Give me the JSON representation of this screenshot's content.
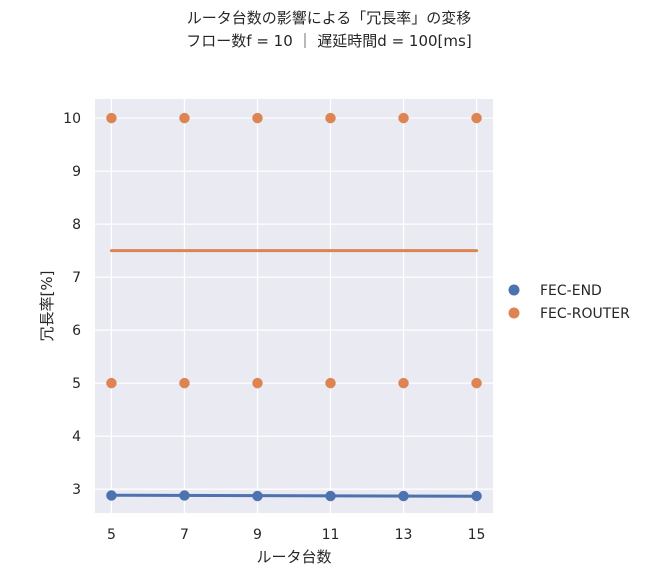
{
  "chart_data": {
    "type": "scatter",
    "title": "ルータ台数の影響による「冗長率」の変移",
    "subtitle": "フロー数f = 10 ｜ 遅延時間d = 100[ms]",
    "xlabel": "ルータ台数",
    "ylabel": "冗長率[%]",
    "x_ticks": [
      "5",
      "7",
      "9",
      "11",
      "13",
      "15"
    ],
    "y_ticks": [
      "3",
      "4",
      "5",
      "6",
      "7",
      "8",
      "9",
      "10"
    ],
    "xlim": [
      4.55,
      15.45
    ],
    "ylim": [
      2.55,
      10.36
    ],
    "grid": true,
    "legend_position": "right",
    "series": [
      {
        "name": "FEC-END",
        "color": "#4c72b0",
        "points": [
          {
            "x": 5,
            "y": 2.88
          },
          {
            "x": 7,
            "y": 2.88
          },
          {
            "x": 9,
            "y": 2.87
          },
          {
            "x": 11,
            "y": 2.87
          },
          {
            "x": 13,
            "y": 2.87
          },
          {
            "x": 15,
            "y": 2.87
          }
        ],
        "fit_line": [
          [
            5,
            2.885
          ],
          [
            15,
            2.865
          ]
        ]
      },
      {
        "name": "FEC-ROUTER",
        "color": "#dd8452",
        "points": [
          {
            "x": 5,
            "y": 10
          },
          {
            "x": 7,
            "y": 10
          },
          {
            "x": 9,
            "y": 10
          },
          {
            "x": 11,
            "y": 10
          },
          {
            "x": 13,
            "y": 10
          },
          {
            "x": 15,
            "y": 10
          },
          {
            "x": 5,
            "y": 5
          },
          {
            "x": 7,
            "y": 5
          },
          {
            "x": 9,
            "y": 5
          },
          {
            "x": 11,
            "y": 5
          },
          {
            "x": 13,
            "y": 5
          },
          {
            "x": 15,
            "y": 5
          }
        ],
        "fit_line": [
          [
            5,
            7.5
          ],
          [
            15,
            7.5
          ]
        ]
      }
    ]
  }
}
